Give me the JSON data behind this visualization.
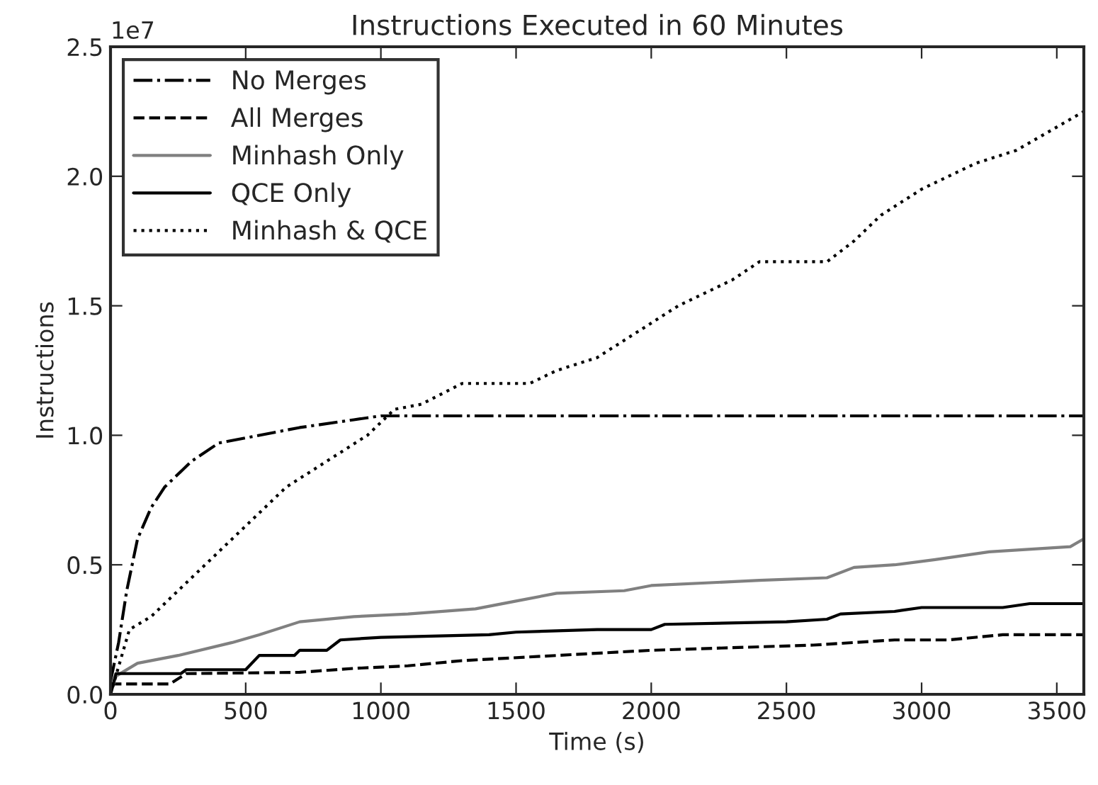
{
  "chart_data": {
    "type": "line",
    "title": "Instructions Executed in 60 Minutes",
    "xlabel": "Time (s)",
    "ylabel": "Instructions",
    "annotations": [
      "1e7"
    ],
    "xlim": [
      0,
      3600
    ],
    "xticks": [
      0,
      500,
      1000,
      1500,
      2000,
      2500,
      3000,
      3500
    ],
    "ylim": [
      0.0,
      2.5
    ],
    "yticks": [
      {
        "value": 0,
        "label": "0.0"
      },
      0.5,
      {
        "value": 1,
        "label": "1.0"
      },
      1.5,
      {
        "value": 2,
        "label": "2.0"
      },
      2.5
    ],
    "grid": false,
    "legend": "top left",
    "series": [
      {
        "name": "No Merges",
        "color": "#000000",
        "line_style": "dashdot",
        "x": [
          0,
          30,
          60,
          100,
          150,
          200,
          300,
          400,
          500,
          700,
          900,
          1000,
          3600
        ],
        "values": [
          0.05,
          0.2,
          0.4,
          0.6,
          0.72,
          0.8,
          0.9,
          0.97,
          0.99,
          1.03,
          1.06,
          1.075,
          1.075
        ]
      },
      {
        "name": "All Merges",
        "color": "#000000",
        "line_style": "dashed",
        "x": [
          0,
          220,
          280,
          700,
          900,
          1100,
          1300,
          1650,
          2000,
          2300,
          2600,
          2900,
          3100,
          3300,
          3600
        ],
        "values": [
          0.04,
          0.04,
          0.08,
          0.085,
          0.1,
          0.11,
          0.13,
          0.15,
          0.17,
          0.18,
          0.19,
          0.21,
          0.21,
          0.23,
          0.23
        ]
      },
      {
        "name": "Minhash Only",
        "color": "#808080",
        "line_style": "solid",
        "x": [
          0,
          20,
          100,
          250,
          450,
          550,
          700,
          900,
          1100,
          1350,
          1500,
          1650,
          1900,
          2000,
          2400,
          2650,
          2750,
          2900,
          3050,
          3250,
          3550,
          3600
        ],
        "values": [
          0,
          0.07,
          0.12,
          0.15,
          0.2,
          0.23,
          0.28,
          0.3,
          0.31,
          0.33,
          0.36,
          0.39,
          0.4,
          0.42,
          0.44,
          0.45,
          0.49,
          0.5,
          0.52,
          0.55,
          0.57,
          0.6
        ]
      },
      {
        "name": "QCE Only",
        "color": "#000000",
        "line_style": "solid",
        "x": [
          0,
          20,
          260,
          280,
          500,
          550,
          680,
          700,
          800,
          850,
          1000,
          1400,
          1500,
          1800,
          2000,
          2050,
          2500,
          2650,
          2700,
          2900,
          3000,
          3300,
          3400,
          3600
        ],
        "values": [
          0,
          0.08,
          0.08,
          0.095,
          0.095,
          0.15,
          0.15,
          0.17,
          0.17,
          0.21,
          0.22,
          0.23,
          0.24,
          0.25,
          0.25,
          0.27,
          0.28,
          0.29,
          0.31,
          0.32,
          0.335,
          0.335,
          0.35,
          0.35
        ]
      },
      {
        "name": "Minhash & QCE",
        "color": "#000000",
        "line_style": "dotted",
        "x": [
          0,
          70,
          150,
          250,
          350,
          450,
          550,
          650,
          800,
          950,
          1050,
          1150,
          1300,
          1550,
          1650,
          1800,
          1950,
          2100,
          2300,
          2400,
          2650,
          2750,
          2850,
          3000,
          3200,
          3350,
          3600
        ],
        "values": [
          0,
          0.25,
          0.3,
          0.4,
          0.5,
          0.6,
          0.7,
          0.8,
          0.9,
          1.0,
          1.1,
          1.12,
          1.2,
          1.2,
          1.25,
          1.3,
          1.4,
          1.5,
          1.6,
          1.67,
          1.67,
          1.75,
          1.85,
          1.95,
          2.05,
          2.1,
          2.25
        ]
      }
    ]
  }
}
